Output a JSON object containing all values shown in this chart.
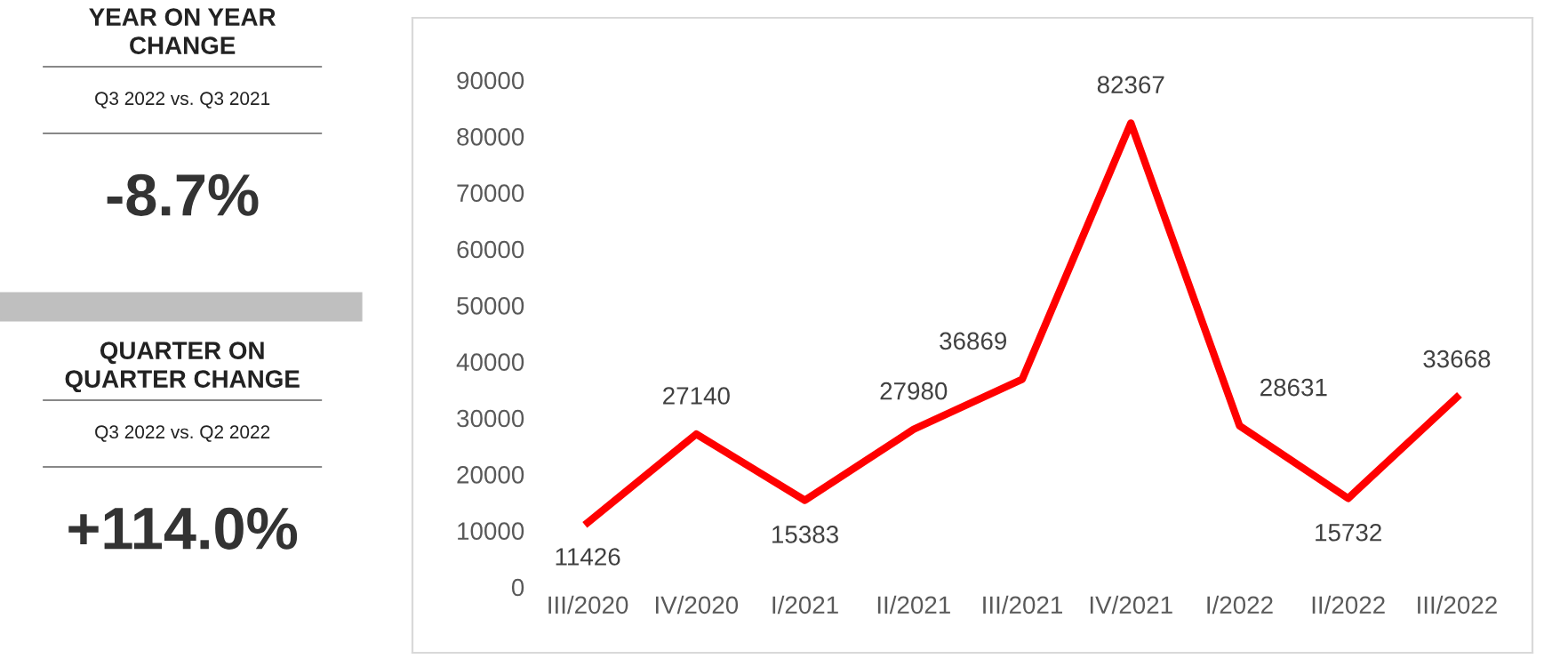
{
  "chart_data": [
    {
      "type": "other",
      "annotations": [
        "YEAR ON YEAR\nCHANGE",
        "Q3 2022 vs. Q3 2021",
        "-8.7%",
        "QUARTER ON\nQUARTER CHANGE",
        "Q3 2022 vs. Q2 2022",
        "+114.0%"
      ]
    },
    {
      "type": "line",
      "categories": [
        "III/2020",
        "IV/2020",
        "I/2021",
        "II/2021",
        "III/2021",
        "IV/2021",
        "I/2022",
        "II/2022",
        "III/2022"
      ],
      "series": [
        {
          "color": "#ff0000",
          "values": [
            11426,
            27140,
            15383,
            27980,
            36869,
            82367,
            28631,
            15732,
            33668
          ]
        }
      ],
      "ylim": [
        0,
        90000
      ],
      "yticks": [
        0,
        10000,
        20000,
        30000,
        40000,
        50000,
        60000,
        70000,
        80000,
        90000
      ],
      "grid": false,
      "data_labels": true,
      "marker": "none",
      "line_style": "solid"
    }
  ]
}
